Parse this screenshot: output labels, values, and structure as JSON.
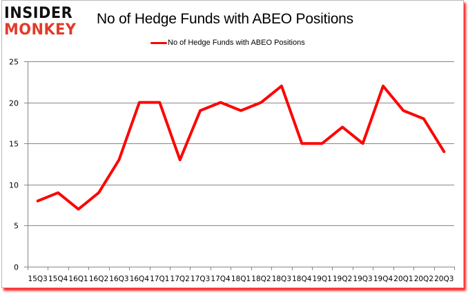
{
  "logo": {
    "line1": "INSIDER",
    "line2": "MONKEY"
  },
  "title": "No of Hedge Funds with ABEO Positions",
  "legend": {
    "label": "No of Hedge Funds with ABEO Positions",
    "color": "#ff0000"
  },
  "colors": {
    "line": "#ff0000",
    "grid": "#868686",
    "frame_shadow": "#ff0000",
    "logo_dark": "#111111",
    "logo_red": "#e23b2a"
  },
  "chart_data": {
    "type": "line",
    "title": "No of Hedge Funds with ABEO Positions",
    "xlabel": "",
    "ylabel": "",
    "categories": [
      "15Q3",
      "15Q4",
      "16Q1",
      "16Q2",
      "16Q3",
      "16Q4",
      "17Q1",
      "17Q2",
      "17Q3",
      "17Q4",
      "18Q1",
      "18Q2",
      "18Q3",
      "18Q4",
      "19Q1",
      "19Q2",
      "19Q3",
      "19Q4",
      "20Q1",
      "20Q2",
      "20Q3"
    ],
    "series": [
      {
        "name": "No of Hedge Funds with ABEO Positions",
        "color": "#ff0000",
        "values": [
          8,
          9,
          7,
          9,
          13,
          20,
          20,
          13,
          19,
          20,
          19,
          20,
          22,
          15,
          15,
          17,
          15,
          22,
          19,
          18,
          14
        ]
      }
    ],
    "ylim": [
      0,
      25
    ],
    "yticks": [
      0,
      5,
      10,
      15,
      20,
      25
    ],
    "grid": {
      "horizontal": true,
      "vertical": false
    },
    "legend_position": "top"
  }
}
